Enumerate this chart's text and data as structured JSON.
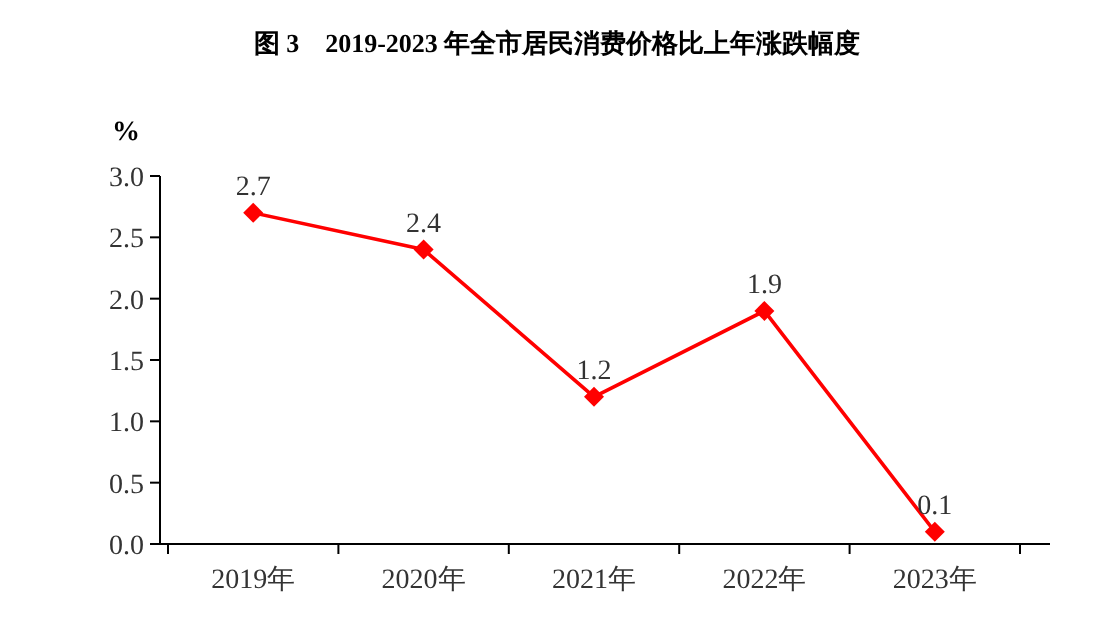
{
  "chart_data": {
    "type": "line",
    "title": "图 3　2019-2023 年全市居民消费价格比上年涨跌幅度",
    "ylabel": "%",
    "categories": [
      "2019年",
      "2020年",
      "2021年",
      "2022年",
      "2023年"
    ],
    "series": [
      {
        "color": "#ff0000",
        "values": [
          2.7,
          2.4,
          1.2,
          1.9,
          0.1
        ]
      }
    ],
    "ylim": [
      0,
      3
    ],
    "yticks": [
      {
        "value": 0,
        "label": "0.0"
      },
      {
        "value": 0.5,
        "label": "0.5"
      },
      {
        "value": 1,
        "label": "1.0"
      },
      {
        "value": 1.5,
        "label": "1.5"
      },
      {
        "value": 2,
        "label": "2.0"
      },
      {
        "value": 2.5,
        "label": "2.5"
      },
      {
        "value": 3,
        "label": "3.0"
      }
    ],
    "data_labels": true,
    "marker": "diamond",
    "line_style": "solid",
    "grid": false
  }
}
